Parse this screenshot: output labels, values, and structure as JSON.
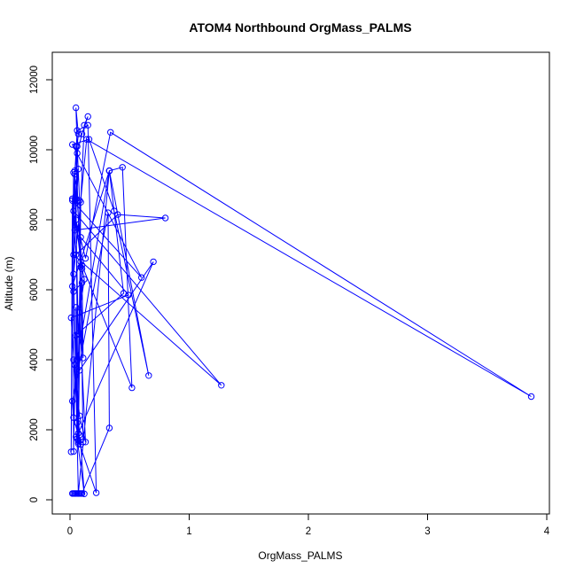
{
  "chart_data": {
    "type": "line",
    "title": "ATOM4 Northbound OrgMass_PALMS",
    "xlabel": "OrgMass_PALMS",
    "ylabel": "Altitude (m)",
    "xlim": [
      0,
      4
    ],
    "ylim": [
      0,
      12500
    ],
    "xticks": [
      0,
      1,
      2,
      3,
      4
    ],
    "yticks": [
      0,
      2000,
      4000,
      6000,
      8000,
      10000,
      12000
    ],
    "grid": false,
    "legend": "none",
    "color": "#0000ff",
    "markers": "open circles connected by lines",
    "series": [
      {
        "x": [
          0.02,
          0.05,
          0.08,
          0.09,
          0.03,
          0.04,
          0.06,
          0.1,
          0.33,
          0.32,
          0.02,
          0.03,
          0.09,
          0.12,
          0.06,
          0.05,
          0.08,
          0.04,
          0.07,
          0.11,
          0.08,
          0.06,
          0.05,
          0.07,
          0.04,
          0.07,
          0.1,
          0.03,
          0.04,
          0.06,
          0.15,
          0.22,
          0.07,
          0.05,
          0.06,
          0.1,
          0.15,
          0.12,
          0.09,
          0.07,
          0.09,
          0.1,
          0.11,
          0.05,
          0.06,
          0.1,
          0.52,
          0.44,
          0.33,
          0.07,
          0.03,
          0.03,
          0.05,
          0.45,
          0.33,
          0.66,
          0.37,
          0.16,
          0.02,
          0.6,
          0.02,
          0.05,
          0.4,
          0.8,
          0.04,
          0.03,
          0.01,
          0.02,
          0.07,
          0.03,
          1.27,
          0.03,
          0.13,
          0.34,
          3.87,
          0.14,
          0.02,
          0.33,
          0.06,
          0.05,
          0.06,
          0.09,
          0.49,
          0.01,
          0.07,
          0.7,
          0.08,
          0.03,
          0.08,
          0.13,
          0.08,
          0.12,
          0.09,
          0.05
        ],
        "y": [
          180,
          180,
          180,
          180,
          180,
          180,
          180,
          180,
          2050,
          8200,
          2820,
          2350,
          1580,
          170,
          1750,
          1800,
          1850,
          3850,
          1600,
          1650,
          8550,
          10100,
          11200,
          10450,
          9400,
          4750,
          6200,
          5950,
          9300,
          10550,
          10700,
          200,
          1700,
          8600,
          9900,
          10450,
          10950,
          10700,
          8500,
          1650,
          6650,
          6600,
          4050,
          10100,
          8550,
          6700,
          3200,
          9500,
          9400,
          180,
          6450,
          1380,
          4700,
          5900,
          9400,
          3550,
          8250,
          10300,
          10150,
          6350,
          8550,
          7000,
          8150,
          8050,
          7700,
          9350,
          1370,
          8600,
          9450,
          7000,
          3270,
          8250,
          6900,
          10500,
          2950,
          10300,
          6100,
          9400,
          4000,
          5500,
          2200,
          7500,
          5850,
          5200,
          1900,
          6800,
          3700,
          4000,
          2400,
          1650,
          5350,
          6300,
          6800,
          8000
        ]
      }
    ]
  }
}
